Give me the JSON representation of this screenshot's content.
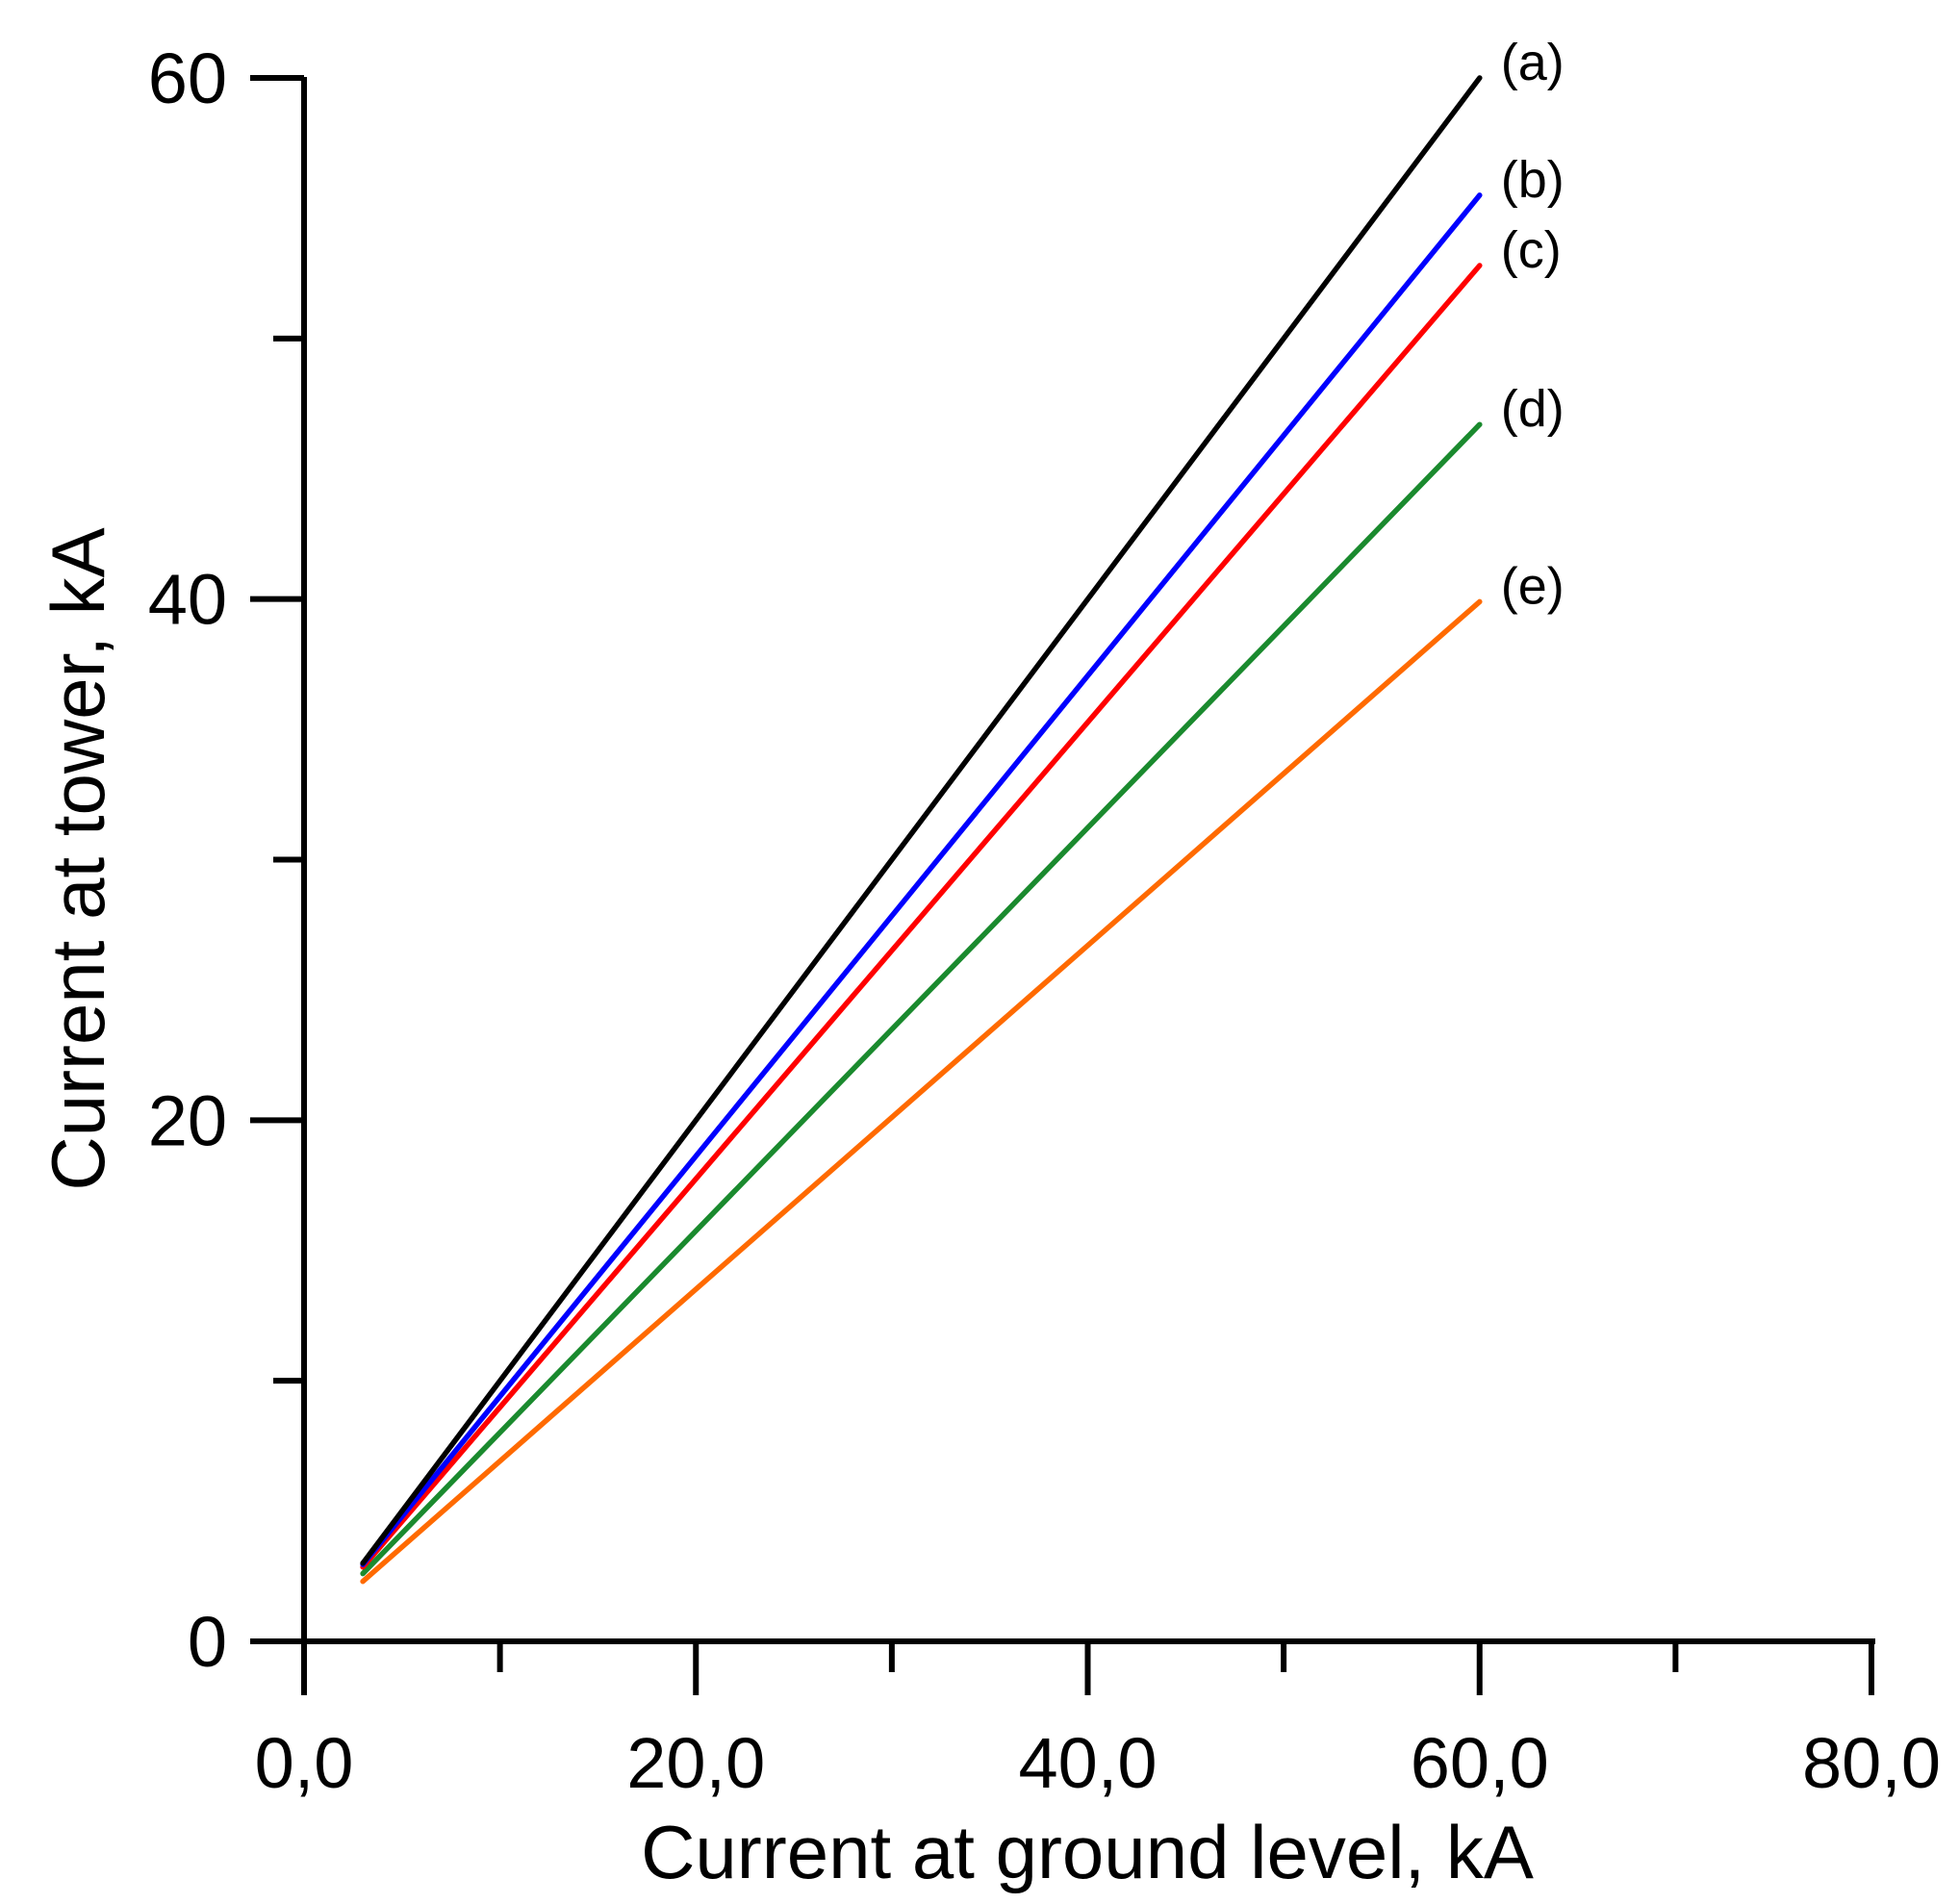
{
  "chart_data": {
    "type": "line",
    "title": "",
    "xlabel": "Current at ground level, kA",
    "ylabel": "Current at tower, kA",
    "xlim": [
      0,
      80
    ],
    "ylim": [
      0,
      60
    ],
    "x_major_ticks": [
      0,
      20,
      40,
      60,
      80
    ],
    "x_minor_ticks": [
      10,
      30,
      50,
      70
    ],
    "x_tick_labels": [
      "0,0",
      "20,0",
      "40,0",
      "60,0",
      "80,0"
    ],
    "y_major_ticks": [
      0,
      20,
      40,
      60
    ],
    "y_minor_ticks": [
      10,
      30,
      50
    ],
    "y_tick_labels": [
      "0",
      "20",
      "40",
      "60"
    ],
    "grid": false,
    "series": [
      {
        "name": "(a)",
        "color": "#000000",
        "x": [
          3,
          60
        ],
        "y": [
          3,
          60
        ]
      },
      {
        "name": "(b)",
        "color": "#0000ff",
        "x": [
          3,
          60
        ],
        "y": [
          2.95,
          55.5
        ]
      },
      {
        "name": "(c)",
        "color": "#ff0000",
        "x": [
          3,
          60
        ],
        "y": [
          2.85,
          52.8
        ]
      },
      {
        "name": "(d)",
        "color": "#1a8a2e",
        "x": [
          3,
          60
        ],
        "y": [
          2.6,
          46.7
        ]
      },
      {
        "name": "(e)",
        "color": "#ff6a00",
        "x": [
          3,
          60
        ],
        "y": [
          2.3,
          39.9
        ]
      }
    ]
  }
}
